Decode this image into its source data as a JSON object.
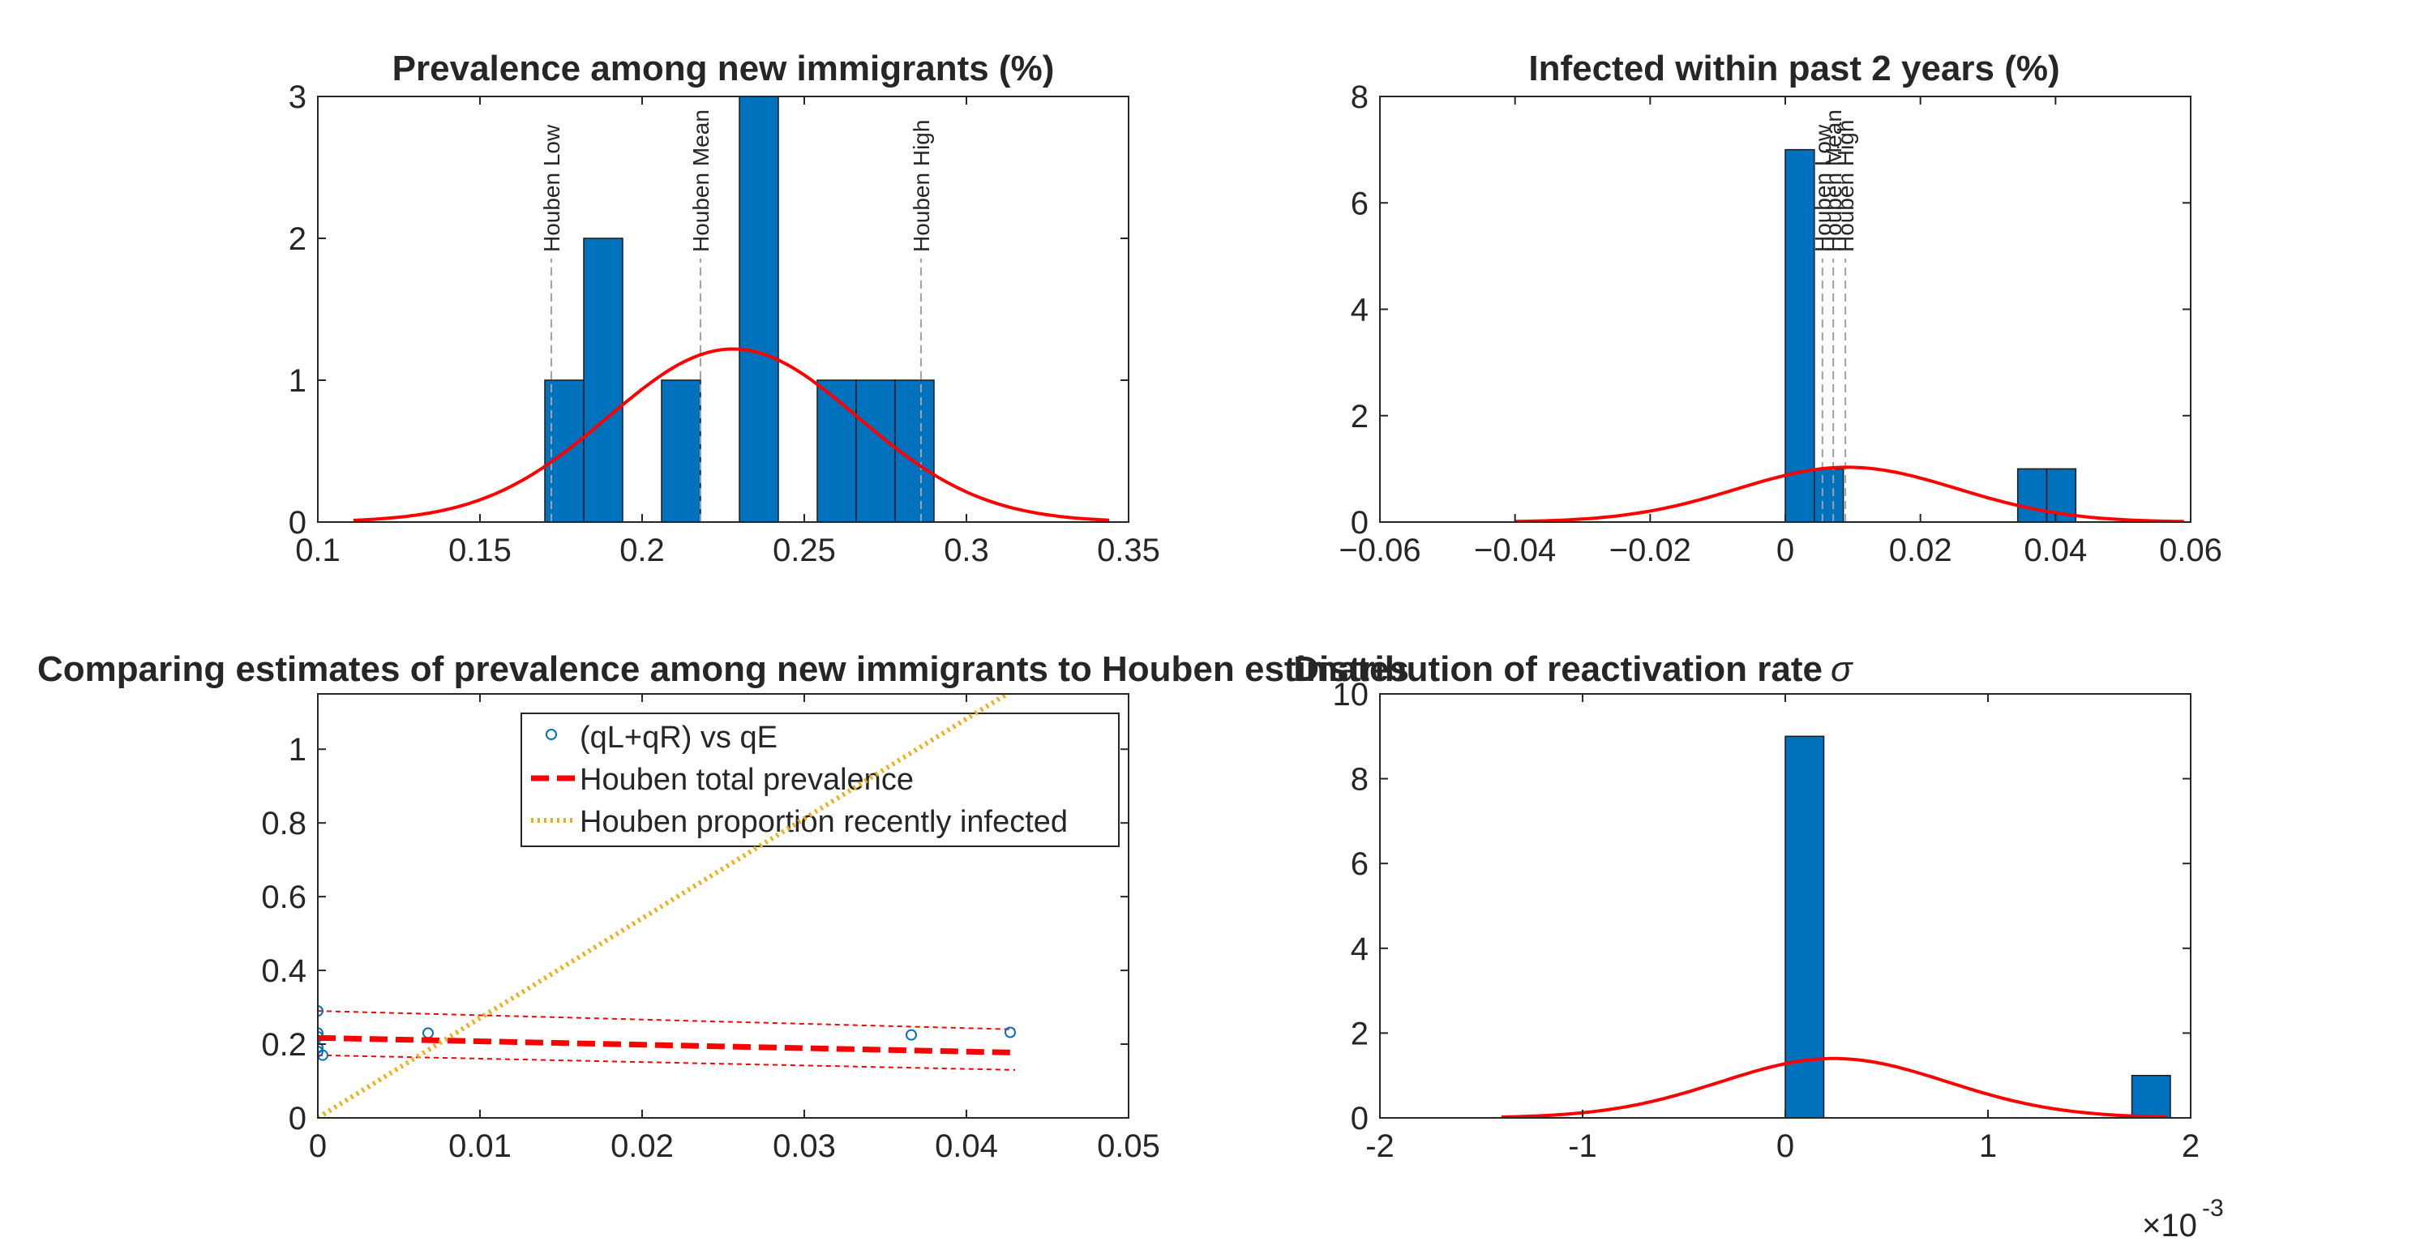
{
  "figure": {
    "background": "#ffffff",
    "bar_color": "#0072bd",
    "fit_color": "#ff0000",
    "axis_color": "#262626",
    "vline_color": "#a0a0a0"
  },
  "chart_data": [
    {
      "id": "p1",
      "type": "bar",
      "title": "Prevalence among new immigrants (%)",
      "xlim": [
        0.1,
        0.35
      ],
      "ylim": [
        0,
        3
      ],
      "xticks": [
        "0.1",
        "0.15",
        "0.2",
        "0.25",
        "0.3",
        "0.35"
      ],
      "yticks": [
        "0",
        "1",
        "2",
        "3"
      ],
      "bin_width": 0.012,
      "bins": [
        {
          "x": 0.17,
          "count": 1
        },
        {
          "x": 0.182,
          "count": 2
        },
        {
          "x": 0.194,
          "count": 0
        },
        {
          "x": 0.206,
          "count": 1
        },
        {
          "x": 0.218,
          "count": 0
        },
        {
          "x": 0.23,
          "count": 3
        },
        {
          "x": 0.242,
          "count": 0
        },
        {
          "x": 0.254,
          "count": 1
        },
        {
          "x": 0.266,
          "count": 1
        },
        {
          "x": 0.278,
          "count": 1
        }
      ],
      "fit": {
        "type": "normal",
        "mean": 0.228,
        "sd": 0.0385,
        "peak": 1.22,
        "range": [
          0.111,
          0.344
        ]
      },
      "reference_lines": [
        {
          "x": 0.172,
          "label": "Houben Low"
        },
        {
          "x": 0.218,
          "label": "Houben Mean"
        },
        {
          "x": 0.286,
          "label": "Houben High"
        }
      ]
    },
    {
      "id": "p2",
      "type": "bar",
      "title": "Infected within past 2 years (%)",
      "xlim": [
        -0.06,
        0.06
      ],
      "ylim": [
        0,
        8
      ],
      "xticks": [
        "−0.06",
        "−0.04",
        "−0.02",
        "0",
        "0.02",
        "0.04",
        "0.06"
      ],
      "yticks": [
        "0",
        "2",
        "4",
        "6",
        "8"
      ],
      "bin_width": 0.0043,
      "bins": [
        {
          "x": 0.0,
          "count": 7
        },
        {
          "x": 0.0043,
          "count": 1
        },
        {
          "x": 0.0344,
          "count": 1
        },
        {
          "x": 0.0387,
          "count": 1
        }
      ],
      "fit": {
        "type": "normal",
        "mean": 0.0092,
        "sd": 0.0163,
        "peak": 1.03,
        "range": [
          -0.04,
          0.059
        ]
      },
      "reference_lines": [
        {
          "x": 0.0055,
          "label": "Houben Low"
        },
        {
          "x": 0.0071,
          "label": "Houben Mean"
        },
        {
          "x": 0.0089,
          "label": "Houben High"
        }
      ]
    },
    {
      "id": "p3",
      "type": "scatter",
      "title": "Comparing estimates of prevalence among new immigrants to Houben estimates",
      "xlim": [
        0,
        0.05
      ],
      "ylim": [
        0,
        1.15
      ],
      "xticks": [
        "0",
        "0.01",
        "0.02",
        "0.03",
        "0.04",
        "0.05"
      ],
      "yticks": [
        "0",
        "0.2",
        "0.4",
        "0.6",
        "0.8",
        "1"
      ],
      "series": [
        {
          "name": "(qL+qR) vs qE",
          "style": "circle",
          "points": [
            [
              0.0,
              0.29
            ],
            [
              0.0,
              0.23
            ],
            [
              0.0,
              0.22
            ],
            [
              0.0,
              0.19
            ],
            [
              0.0,
              0.18
            ],
            [
              0.0003,
              0.17
            ],
            [
              0.0068,
              0.23
            ],
            [
              0.0366,
              0.225
            ],
            [
              0.0427,
              0.232
            ]
          ]
        },
        {
          "name": "Houben total prevalence",
          "style": "dashed",
          "points": [
            [
              0.0,
              0.217
            ],
            [
              0.043,
              0.177
            ]
          ]
        },
        {
          "name": "Houben proportion recently infected",
          "style": "dotted",
          "points": [
            [
              0.0,
              0.0
            ],
            [
              0.0425,
              1.15
            ]
          ]
        }
      ],
      "bounds": [
        {
          "points": [
            [
              0.0,
              0.29
            ],
            [
              0.043,
              0.24
            ]
          ]
        },
        {
          "points": [
            [
              0.0,
              0.17
            ],
            [
              0.043,
              0.13
            ]
          ]
        }
      ]
    },
    {
      "id": "p4",
      "type": "bar",
      "title": "Distribution of reactivation rate",
      "title_symbol": "σ",
      "xlim": [
        -2,
        2
      ],
      "ylim": [
        0,
        10
      ],
      "xticks": [
        "-2",
        "-1",
        "0",
        "1",
        "2"
      ],
      "yticks": [
        "0",
        "2",
        "4",
        "6",
        "8",
        "10"
      ],
      "x_exponent_base": "×10",
      "x_exponent_power": "-3",
      "bin_width": 0.19,
      "bins": [
        {
          "x": 0.0,
          "count": 9
        },
        {
          "x": 1.71,
          "count": 1
        }
      ],
      "fit": {
        "type": "normal",
        "mean": 0.24,
        "sd": 0.56,
        "peak": 1.4,
        "range": [
          -1.4,
          1.88
        ]
      }
    }
  ]
}
